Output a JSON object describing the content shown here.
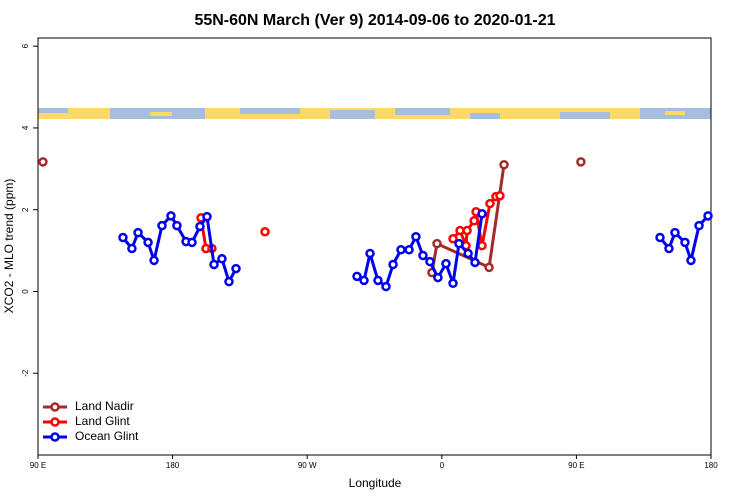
{
  "chart_data": {
    "type": "line",
    "title": "55N-60N March (Ver 9)   2014-09-06 to 2020-01-21",
    "xlabel": "Longitude",
    "ylabel": "XCO2 - MLO trend (ppm)",
    "xlim": [
      90,
      540
    ],
    "ylim": [
      -4,
      6.2
    ],
    "xticks": [
      {
        "value": 90,
        "label": "90 E"
      },
      180,
      {
        "value": 270,
        "label": "90 W"
      },
      0,
      {
        "value": 450,
        "label": "90 E"
      },
      {
        "value": 540,
        "label": "180"
      }
    ],
    "yticks": [
      -2,
      0,
      2,
      4,
      6
    ],
    "legend": "bottom-left",
    "series": [
      {
        "name": "Land Nadir",
        "color": "#a52a2a",
        "x": [
          93.3,
          220,
          353.4,
          356.8,
          391.6,
          401.6,
          430,
          453
        ],
        "values": [
          3.17,
          null,
          0.46,
          1.17,
          0.59,
          3.1,
          null,
          3.17
        ]
      },
      {
        "name": "Land Glint",
        "color": "#ff0000",
        "x": [
          199,
          202.3,
          206.3,
          224,
          241.8,
          300,
          367.5,
          372.2,
          376.2,
          376.9,
          381.6,
          382.9,
          386.9,
          392.2,
          396.2,
          398.9
        ],
        "values": [
          1.8,
          1.05,
          1.05,
          null,
          1.46,
          null,
          1.29,
          1.49,
          1.12,
          1.49,
          1.73,
          1.95,
          1.12,
          2.15,
          2.32,
          2.34
        ]
      },
      {
        "name": "Ocean Glint",
        "color": "#0000ee",
        "x": [
          146.8,
          152.8,
          156.9,
          163.6,
          167.6,
          172.9,
          178.9,
          182.9,
          189,
          193,
          198.3,
          203,
          207.7,
          213,
          217.7,
          222.4,
          260,
          303.3,
          308,
          312,
          317.3,
          322.7,
          327.4,
          332.7,
          338.1,
          342.7,
          347.4,
          352.1,
          357.4,
          362.8,
          367.5,
          371.5,
          377.6,
          382.2,
          386.9,
          450,
          505.9,
          511.9,
          515.9,
          522.6,
          526.6,
          532,
          538
        ],
        "values": [
          1.32,
          1.05,
          1.44,
          1.2,
          0.76,
          1.61,
          1.85,
          1.61,
          1.22,
          1.2,
          1.59,
          1.83,
          0.66,
          0.8,
          0.24,
          0.56,
          null,
          0.37,
          0.27,
          0.93,
          0.27,
          0.12,
          0.66,
          1.02,
          1.02,
          1.34,
          0.88,
          0.73,
          0.34,
          0.68,
          0.2,
          1.17,
          0.93,
          0.71,
          1.9,
          null,
          1.32,
          1.05,
          1.44,
          1.2,
          0.76,
          1.61,
          1.85
        ]
      }
    ]
  }
}
